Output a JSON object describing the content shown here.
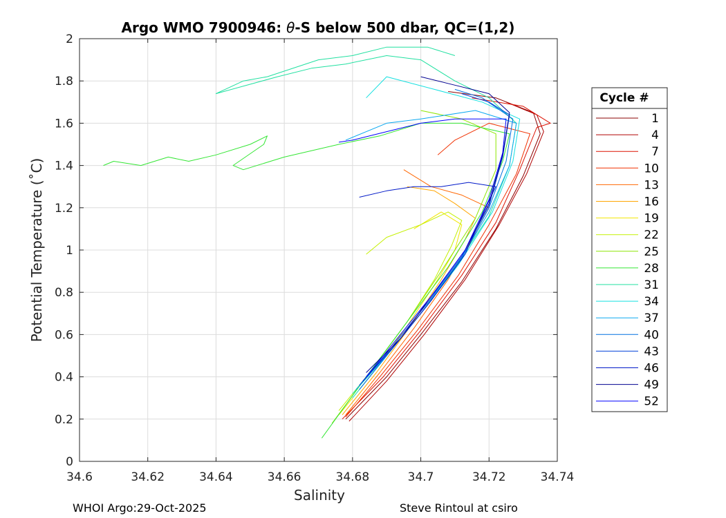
{
  "chart_data": {
    "type": "line",
    "title_prefix": "Argo WMO 7900946: ",
    "title_theta": "θ",
    "title_suffix": "-S below 500 dbar,  QC=(1,2)",
    "xlabel": "Salinity",
    "ylabel": "Potential Temperature (˚C)",
    "xlim": [
      34.6,
      34.74
    ],
    "ylim": [
      0,
      2
    ],
    "xticks": [
      "34.6",
      "34.62",
      "34.64",
      "34.66",
      "34.68",
      "34.7",
      "34.72",
      "34.74"
    ],
    "yticks": [
      "0",
      "0.2",
      "0.4",
      "0.6",
      "0.8",
      "1",
      "1.2",
      "1.4",
      "1.6",
      "1.8",
      "2"
    ],
    "grid": true,
    "legend": {
      "title": "Cycle #",
      "placement": "right-outside",
      "entries": [
        {
          "label": "1",
          "color": "#8b0000"
        },
        {
          "label": "4",
          "color": "#b00000"
        },
        {
          "label": "7",
          "color": "#dd1000"
        },
        {
          "label": "10",
          "color": "#f03000"
        },
        {
          "label": "13",
          "color": "#ff6600"
        },
        {
          "label": "16",
          "color": "#ffa500"
        },
        {
          "label": "19",
          "color": "#f2e600"
        },
        {
          "label": "22",
          "color": "#c4f000"
        },
        {
          "label": "25",
          "color": "#8ce600"
        },
        {
          "label": "28",
          "color": "#33e633"
        },
        {
          "label": "31",
          "color": "#20e0a0"
        },
        {
          "label": "34",
          "color": "#14e0e0"
        },
        {
          "label": "37",
          "color": "#0aa8f0"
        },
        {
          "label": "40",
          "color": "#0070e0"
        },
        {
          "label": "43",
          "color": "#0040d8"
        },
        {
          "label": "46",
          "color": "#0018c8"
        },
        {
          "label": "49",
          "color": "#000090"
        },
        {
          "label": "52",
          "color": "#0000ff"
        }
      ]
    },
    "series": [
      {
        "name": "1",
        "color": "#8b0000",
        "points": [
          [
            34.678,
            0.2
          ],
          [
            34.69,
            0.4
          ],
          [
            34.7,
            0.6
          ],
          [
            34.712,
            0.85
          ],
          [
            34.722,
            1.1
          ],
          [
            34.73,
            1.35
          ],
          [
            34.735,
            1.55
          ],
          [
            34.733,
            1.65
          ],
          [
            34.722,
            1.72
          ],
          [
            34.708,
            1.75
          ]
        ]
      },
      {
        "name": "4",
        "color": "#b00000",
        "points": [
          [
            34.679,
            0.19
          ],
          [
            34.69,
            0.38
          ],
          [
            34.701,
            0.6
          ],
          [
            34.713,
            0.86
          ],
          [
            34.723,
            1.12
          ],
          [
            34.731,
            1.36
          ],
          [
            34.736,
            1.56
          ],
          [
            34.734,
            1.64
          ],
          [
            34.725,
            1.7
          ]
        ]
      },
      {
        "name": "7",
        "color": "#dd1000",
        "points": [
          [
            34.677,
            0.2
          ],
          [
            34.689,
            0.4
          ],
          [
            34.7,
            0.62
          ],
          [
            34.712,
            0.88
          ],
          [
            34.722,
            1.13
          ],
          [
            34.729,
            1.38
          ],
          [
            34.734,
            1.58
          ],
          [
            34.738,
            1.6
          ],
          [
            34.73,
            1.68
          ],
          [
            34.715,
            1.72
          ]
        ]
      },
      {
        "name": "10",
        "color": "#f03000",
        "points": [
          [
            34.678,
            0.21
          ],
          [
            34.688,
            0.4
          ],
          [
            34.699,
            0.62
          ],
          [
            34.711,
            0.88
          ],
          [
            34.72,
            1.12
          ],
          [
            34.728,
            1.36
          ],
          [
            34.732,
            1.55
          ],
          [
            34.72,
            1.6
          ],
          [
            34.71,
            1.52
          ],
          [
            34.705,
            1.45
          ]
        ]
      },
      {
        "name": "13",
        "color": "#ff6600",
        "points": [
          [
            34.678,
            0.22
          ],
          [
            34.688,
            0.42
          ],
          [
            34.698,
            0.63
          ],
          [
            34.708,
            0.86
          ],
          [
            34.716,
            1.08
          ],
          [
            34.72,
            1.2
          ],
          [
            34.712,
            1.26
          ],
          [
            34.703,
            1.3
          ],
          [
            34.695,
            1.38
          ]
        ]
      },
      {
        "name": "16",
        "color": "#ffa500",
        "points": [
          [
            34.677,
            0.22
          ],
          [
            34.687,
            0.42
          ],
          [
            34.697,
            0.64
          ],
          [
            34.706,
            0.86
          ],
          [
            34.713,
            1.05
          ],
          [
            34.716,
            1.15
          ],
          [
            34.71,
            1.22
          ],
          [
            34.704,
            1.28
          ],
          [
            34.696,
            1.3
          ]
        ]
      },
      {
        "name": "19",
        "color": "#f2e600",
        "points": [
          [
            34.676,
            0.22
          ],
          [
            34.686,
            0.42
          ],
          [
            34.696,
            0.64
          ],
          [
            34.705,
            0.86
          ],
          [
            34.71,
            1.0
          ],
          [
            34.712,
            1.12
          ],
          [
            34.706,
            1.18
          ],
          [
            34.698,
            1.1
          ]
        ]
      },
      {
        "name": "22",
        "color": "#c4f000",
        "points": [
          [
            34.676,
            0.24
          ],
          [
            34.686,
            0.44
          ],
          [
            34.696,
            0.66
          ],
          [
            34.704,
            0.86
          ],
          [
            34.709,
            1.02
          ],
          [
            34.712,
            1.14
          ],
          [
            34.708,
            1.18
          ],
          [
            34.7,
            1.12
          ],
          [
            34.69,
            1.06
          ],
          [
            34.684,
            0.98
          ]
        ]
      },
      {
        "name": "25",
        "color": "#8ce600",
        "points": [
          [
            34.674,
            0.18
          ],
          [
            34.685,
            0.42
          ],
          [
            34.696,
            0.66
          ],
          [
            34.706,
            0.9
          ],
          [
            34.716,
            1.15
          ],
          [
            34.722,
            1.38
          ],
          [
            34.722,
            1.55
          ],
          [
            34.712,
            1.62
          ],
          [
            34.7,
            1.66
          ]
        ]
      },
      {
        "name": "28",
        "color": "#33e633",
        "points": [
          [
            34.671,
            0.11
          ],
          [
            34.684,
            0.4
          ],
          [
            34.696,
            0.66
          ],
          [
            34.708,
            0.92
          ],
          [
            34.718,
            1.18
          ],
          [
            34.724,
            1.42
          ],
          [
            34.726,
            1.55
          ],
          [
            34.712,
            1.6
          ],
          [
            34.7,
            1.6
          ],
          [
            34.688,
            1.54
          ],
          [
            34.676,
            1.5
          ],
          [
            34.66,
            1.44
          ],
          [
            34.648,
            1.38
          ],
          [
            34.645,
            1.4
          ],
          [
            34.654,
            1.5
          ],
          [
            34.655,
            1.54
          ],
          [
            34.65,
            1.5
          ],
          [
            34.64,
            1.45
          ],
          [
            34.632,
            1.42
          ],
          [
            34.626,
            1.44
          ],
          [
            34.618,
            1.4
          ],
          [
            34.61,
            1.42
          ],
          [
            34.607,
            1.4
          ]
        ]
      },
      {
        "name": "31",
        "color": "#20e0a0",
        "points": [
          [
            34.68,
            0.32
          ],
          [
            34.69,
            0.5
          ],
          [
            34.7,
            0.7
          ],
          [
            34.71,
            0.92
          ],
          [
            34.72,
            1.16
          ],
          [
            34.726,
            1.4
          ],
          [
            34.728,
            1.6
          ],
          [
            34.72,
            1.72
          ],
          [
            34.71,
            1.8
          ],
          [
            34.7,
            1.9
          ],
          [
            34.69,
            1.92
          ],
          [
            34.678,
            1.88
          ],
          [
            34.668,
            1.86
          ],
          [
            34.658,
            1.82
          ],
          [
            34.64,
            1.74
          ],
          [
            34.648,
            1.8
          ],
          [
            34.655,
            1.82
          ],
          [
            34.67,
            1.9
          ],
          [
            34.68,
            1.92
          ],
          [
            34.69,
            1.96
          ],
          [
            34.702,
            1.96
          ],
          [
            34.71,
            1.92
          ]
        ]
      },
      {
        "name": "34",
        "color": "#14e0e0",
        "points": [
          [
            34.68,
            0.3
          ],
          [
            34.69,
            0.5
          ],
          [
            34.7,
            0.7
          ],
          [
            34.711,
            0.93
          ],
          [
            34.721,
            1.18
          ],
          [
            34.727,
            1.42
          ],
          [
            34.729,
            1.62
          ],
          [
            34.718,
            1.7
          ],
          [
            34.704,
            1.76
          ],
          [
            34.69,
            1.82
          ],
          [
            34.684,
            1.72
          ]
        ]
      },
      {
        "name": "37",
        "color": "#0aa8f0",
        "points": [
          [
            34.681,
            0.34
          ],
          [
            34.691,
            0.52
          ],
          [
            34.701,
            0.72
          ],
          [
            34.711,
            0.94
          ],
          [
            34.72,
            1.18
          ],
          [
            34.726,
            1.4
          ],
          [
            34.728,
            1.6
          ],
          [
            34.716,
            1.66
          ],
          [
            34.7,
            1.62
          ],
          [
            34.69,
            1.6
          ],
          [
            34.678,
            1.52
          ]
        ]
      },
      {
        "name": "40",
        "color": "#0070e0",
        "points": [
          [
            34.682,
            0.34
          ],
          [
            34.692,
            0.54
          ],
          [
            34.702,
            0.74
          ],
          [
            34.712,
            0.96
          ],
          [
            34.72,
            1.2
          ],
          [
            34.725,
            1.42
          ],
          [
            34.727,
            1.62
          ],
          [
            34.718,
            1.72
          ],
          [
            34.71,
            1.76
          ]
        ]
      },
      {
        "name": "43",
        "color": "#0040d8",
        "points": [
          [
            34.682,
            0.36
          ],
          [
            34.692,
            0.55
          ],
          [
            34.702,
            0.75
          ],
          [
            34.712,
            0.97
          ],
          [
            34.72,
            1.21
          ],
          [
            34.724,
            1.44
          ],
          [
            34.726,
            1.64
          ],
          [
            34.72,
            1.7
          ],
          [
            34.712,
            1.74
          ]
        ]
      },
      {
        "name": "46",
        "color": "#0018c8",
        "points": [
          [
            34.683,
            0.38
          ],
          [
            34.693,
            0.56
          ],
          [
            34.703,
            0.76
          ],
          [
            34.713,
            0.98
          ],
          [
            34.719,
            1.2
          ],
          [
            34.722,
            1.3
          ],
          [
            34.714,
            1.32
          ],
          [
            34.706,
            1.3
          ],
          [
            34.698,
            1.3
          ],
          [
            34.69,
            1.28
          ],
          [
            34.682,
            1.25
          ]
        ]
      },
      {
        "name": "49",
        "color": "#000090",
        "points": [
          [
            34.684,
            0.42
          ],
          [
            34.694,
            0.58
          ],
          [
            34.703,
            0.78
          ],
          [
            34.713,
            1.0
          ],
          [
            34.72,
            1.22
          ],
          [
            34.724,
            1.45
          ],
          [
            34.726,
            1.65
          ],
          [
            34.72,
            1.74
          ],
          [
            34.71,
            1.78
          ],
          [
            34.7,
            1.82
          ]
        ]
      },
      {
        "name": "52",
        "color": "#0000ff",
        "points": [
          [
            34.684,
            0.4
          ],
          [
            34.694,
            0.6
          ],
          [
            34.704,
            0.8
          ],
          [
            34.713,
            1.0
          ],
          [
            34.72,
            1.24
          ],
          [
            34.724,
            1.46
          ],
          [
            34.725,
            1.62
          ],
          [
            34.71,
            1.62
          ],
          [
            34.7,
            1.6
          ],
          [
            34.69,
            1.56
          ],
          [
            34.68,
            1.52
          ],
          [
            34.676,
            1.51
          ]
        ]
      }
    ]
  },
  "footer": {
    "left": "WHOI Argo:29-Oct-2025",
    "right": "Steve Rintoul at csiro"
  }
}
